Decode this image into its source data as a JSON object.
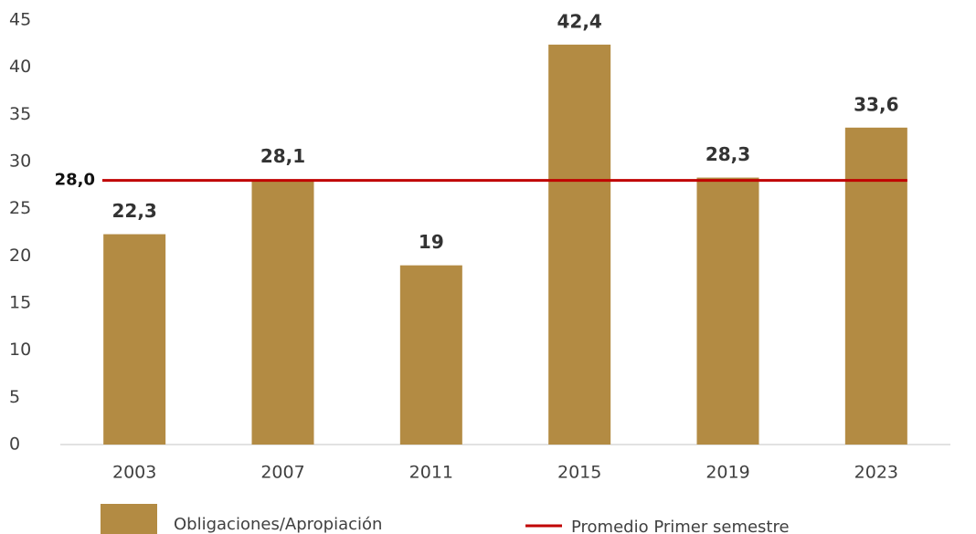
{
  "chart_data": {
    "type": "bar",
    "categories": [
      "2003",
      "2007",
      "2011",
      "2015",
      "2019",
      "2023"
    ],
    "series": [
      {
        "name": "Obligaciones/Apropiación",
        "color": "#b38b43",
        "values": [
          22.3,
          28.1,
          19,
          42.4,
          28.3,
          33.6
        ],
        "value_labels": [
          "22,3",
          "28,1",
          "19",
          "42,4",
          "28,3",
          "33,6"
        ]
      }
    ],
    "reference_line": {
      "name": "Promedio Primer semestre",
      "color": "#c00000",
      "value": 28.0,
      "value_label": "28,0"
    },
    "ylim": [
      0,
      45
    ],
    "yticks": [
      0,
      5,
      10,
      15,
      20,
      25,
      30,
      35,
      40,
      45
    ],
    "legend": "bottom"
  }
}
